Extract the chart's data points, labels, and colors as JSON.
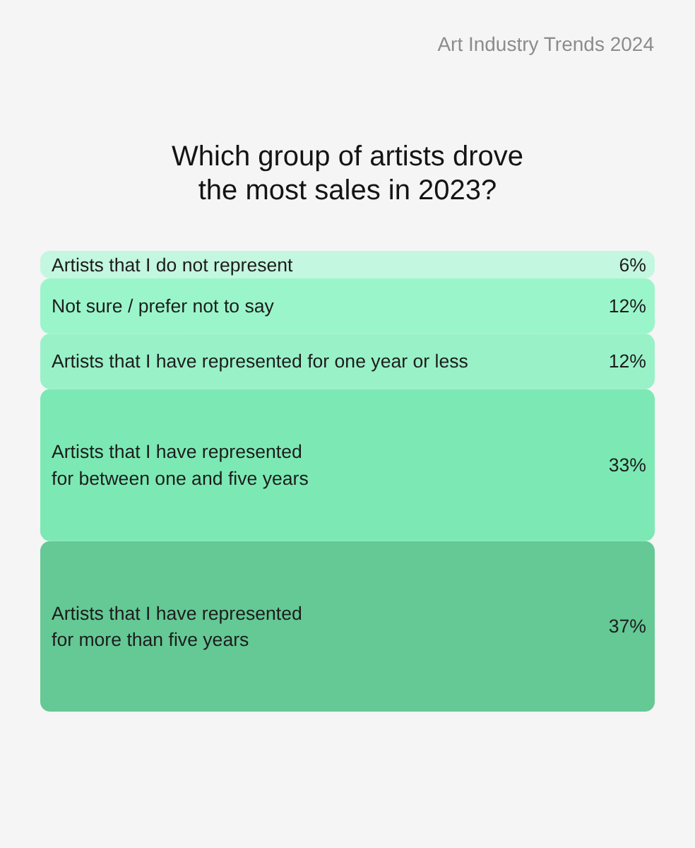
{
  "chart_data": {
    "type": "bar",
    "title": "Which group of artists drove\nthe most sales in 2023?",
    "subtitle": "Art Industry Trends 2024",
    "categories": [
      null
    ],
    "stacked": true,
    "ylim": [
      0,
      100
    ],
    "tick_labels": false,
    "legend": false,
    "series": [
      {
        "name": "Artists that I have represented\nfor more than five years",
        "color": "#64c995",
        "values": [
          37
        ],
        "value_labels": [
          "37%"
        ]
      },
      {
        "name": "Artists that I have represented\nfor between one and five years",
        "color": "#7ce9b4",
        "values": [
          33
        ],
        "value_labels": [
          "33%"
        ]
      },
      {
        "name": "Artists that I have represented for one year or less",
        "color": "#99f1c8",
        "values": [
          12
        ],
        "value_labels": [
          "12%"
        ]
      },
      {
        "name": "Not sure / prefer not to say",
        "color": "#9bf5cb",
        "values": [
          12
        ],
        "value_labels": [
          "12%"
        ]
      },
      {
        "name": "Artists that I do not represent",
        "color": "#c3f7df",
        "values": [
          6
        ],
        "value_labels": [
          "6%"
        ]
      }
    ]
  }
}
